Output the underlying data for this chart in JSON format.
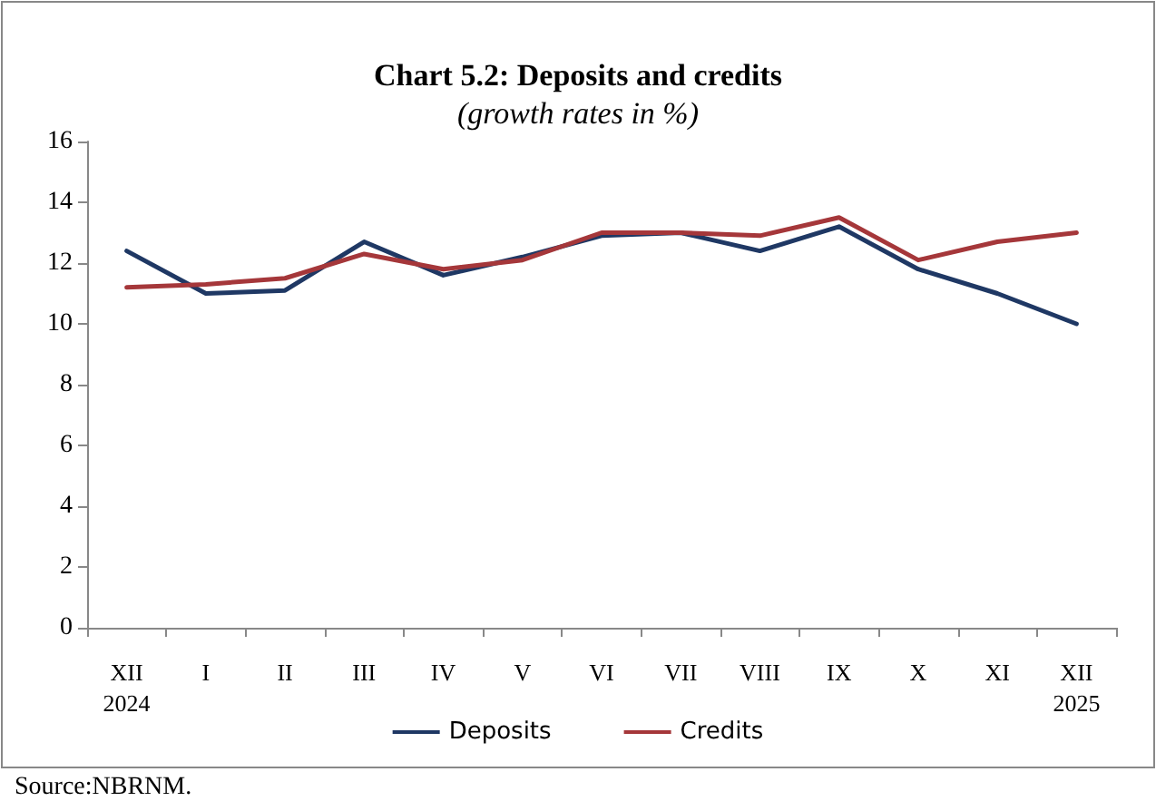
{
  "chart_data": {
    "type": "line",
    "title": "Chart 5.2: Deposits and credits",
    "subtitle": "(growth rates in %)",
    "categories": [
      "XII\n2024",
      "I",
      "II",
      "III",
      "IV",
      "V",
      "VI",
      "VII",
      "VIII",
      "IX",
      "X",
      "XI",
      "XII\n2025"
    ],
    "series": [
      {
        "name": "Deposits",
        "color": "#1f3864",
        "values": [
          12.4,
          11.0,
          11.1,
          12.7,
          11.6,
          12.2,
          12.9,
          13.0,
          12.4,
          13.2,
          11.8,
          11.0,
          10.0
        ]
      },
      {
        "name": "Credits",
        "color": "#a5373a",
        "values": [
          11.2,
          11.3,
          11.5,
          12.3,
          11.8,
          12.1,
          13.0,
          13.0,
          12.9,
          13.5,
          12.1,
          12.7,
          13.0
        ]
      }
    ],
    "ylim": [
      0,
      16
    ],
    "yticks": [
      0,
      2,
      4,
      6,
      8,
      10,
      12,
      14,
      16
    ],
    "grid": false,
    "legend": "bottom",
    "marker": "none",
    "line_style": "solid",
    "annotations": [
      "Source:NBRNM."
    ]
  }
}
